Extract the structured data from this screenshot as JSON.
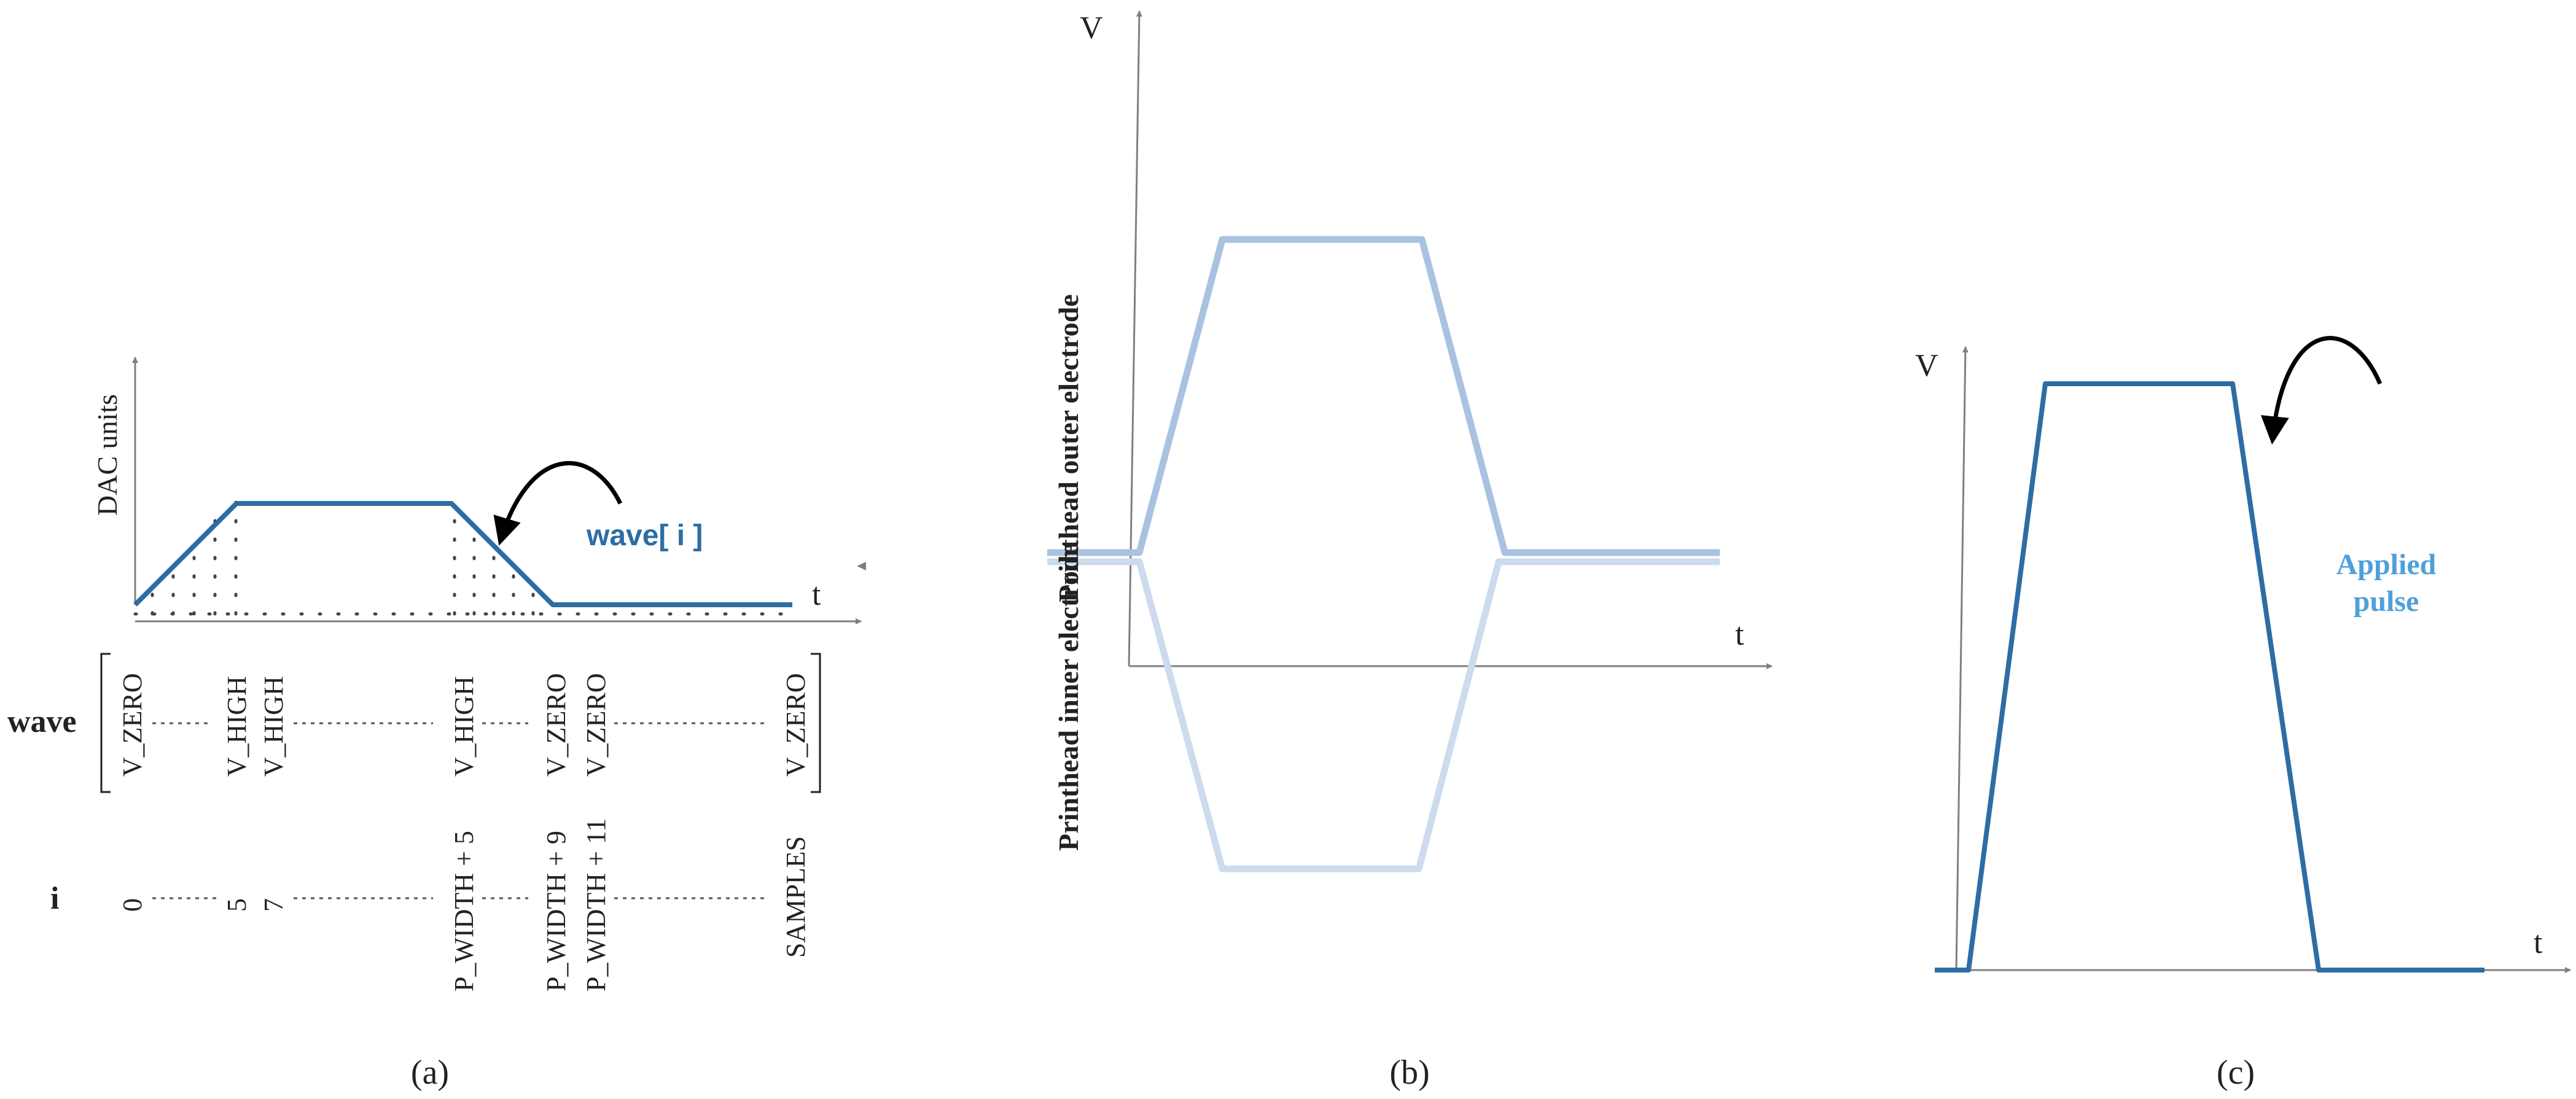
{
  "colors": {
    "pulse": "#2E6DA4",
    "outer": "#A8C2E0",
    "inner": "#CCDBEE",
    "label_blue": "#4EA0DA",
    "axis": "#7F7F7F"
  },
  "panel_a": {
    "caption": "(a)",
    "y_label": "DAC units",
    "x_label": "t",
    "arrow_label": "wave[ i ]",
    "row_wave_label": "wave",
    "row_i_label": "i",
    "wave_values": [
      "V_ZERO",
      "V_HIGH",
      "V_HIGH",
      "V_HIGH",
      "V_ZERO",
      "V_ZERO",
      "V_ZERO"
    ],
    "i_values": [
      "0",
      "5",
      "7",
      "P_WIDTH + 5",
      "P_WIDTH + 9",
      "P_WIDTH + 11",
      "SAMPLES"
    ]
  },
  "panel_b": {
    "caption": "(b)",
    "y_label": "V",
    "x_label": "t",
    "outer_label": "Printhead outer electrode",
    "inner_label": "Printhead inner electrode"
  },
  "panel_c": {
    "caption": "(c)",
    "y_label": "V",
    "x_label": "t",
    "arrow_label_line1": "Applied",
    "arrow_label_line2": "pulse"
  }
}
